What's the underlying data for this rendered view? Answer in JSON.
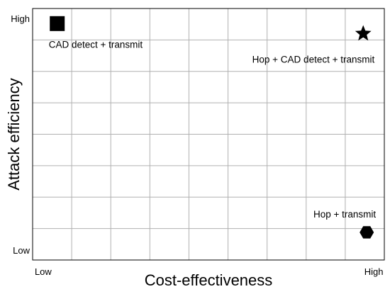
{
  "chart_data": {
    "type": "scatter",
    "title": "",
    "xlabel": "Cost-effectiveness",
    "ylabel": "Attack efficiency",
    "xlim": [
      0,
      1
    ],
    "ylim": [
      0,
      1
    ],
    "grid": true,
    "x_ticks": [
      {
        "value": 0.03,
        "label": "Low"
      },
      {
        "value": 0.97,
        "label": "High"
      }
    ],
    "y_ticks": [
      {
        "value": 0.04,
        "label": "Low"
      },
      {
        "value": 0.96,
        "label": "High"
      }
    ],
    "points": [
      {
        "label": "CAD detect + transmit",
        "x": 0.07,
        "y": 0.94,
        "marker": "square",
        "color": "#000000"
      },
      {
        "label": "Hop + CAD detect + transmit",
        "x": 0.94,
        "y": 0.9,
        "marker": "star",
        "color": "#000000"
      },
      {
        "label": "Hop + transmit",
        "x": 0.95,
        "y": 0.11,
        "marker": "hexagon",
        "color": "#000000"
      }
    ]
  },
  "colors": {
    "grid": "#b0b0b0",
    "frame": "#000000",
    "marker": "#000000"
  }
}
